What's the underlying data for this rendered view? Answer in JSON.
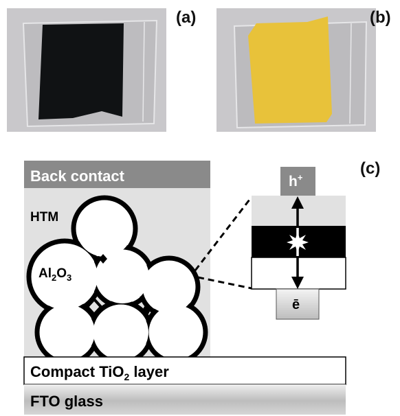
{
  "panels": {
    "a": {
      "label": "(a)"
    },
    "b": {
      "label": "(b)"
    },
    "c": {
      "label": "(c)"
    }
  },
  "layers": {
    "back_contact": "Back contact",
    "htm": "HTM",
    "al2o3": {
      "base": "Al",
      "sub1": "2",
      "mid": "O",
      "sub2": "3"
    },
    "compact": {
      "base": "Compact TiO",
      "sub": "2",
      "rest": " layer"
    },
    "fto": "FTO glass"
  },
  "energy": {
    "hole": {
      "base": "h",
      "sup": "+"
    },
    "electron": "ē"
  },
  "colors": {
    "absorber_dark_film": "#101214",
    "absorber_yellow_film": "#e8c23a",
    "back_contact_bar": "#8a8a8a",
    "htm_fill": "#e1e1e1",
    "photo_background": "#c9c8cb"
  }
}
